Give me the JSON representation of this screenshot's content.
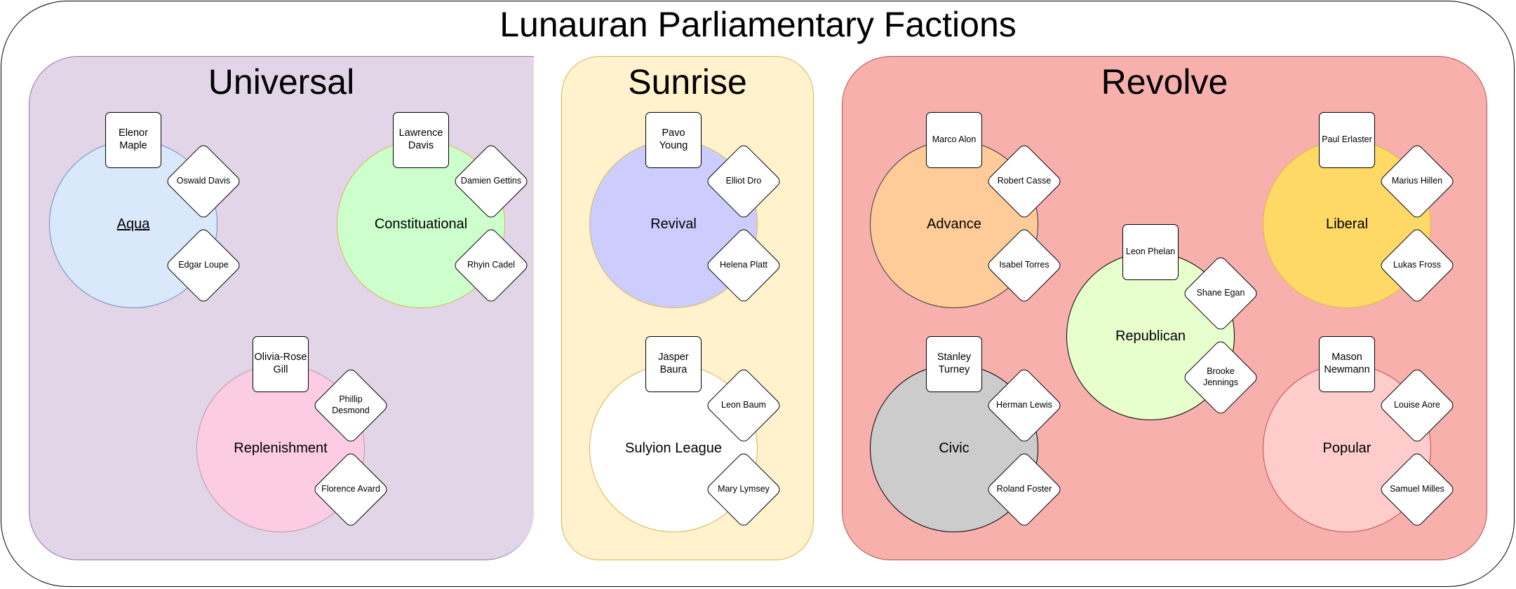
{
  "title": "Lunauran Parliamentary Factions",
  "colors": {
    "universal_fill": "#e1d5e7",
    "universal_stroke": "#9673a6",
    "sunrise_fill": "#fff2cc",
    "sunrise_stroke": "#d6b656",
    "revolve_fill": "#f8b0ad",
    "revolve_stroke": "#b85450"
  },
  "groups": [
    {
      "name": "Universal",
      "parties": [
        {
          "name": "Aqua",
          "leader": "Elenor\nMaple",
          "members": [
            "Oswald Davis",
            "Edgar Loupe"
          ]
        },
        {
          "name": "Constituational",
          "leader": "Lawrence\nDavis",
          "members": [
            "Damien Gettins",
            "Rhyin Cadel"
          ]
        },
        {
          "name": "Replenishment",
          "leader": "Olivia-Rose\nGill",
          "members": [
            "Phillip\nDesmond",
            "Florence Avard"
          ]
        }
      ]
    },
    {
      "name": "Sunrise",
      "parties": [
        {
          "name": "Revival",
          "leader": "Pavo\nYoung",
          "members": [
            "Elliot Dro",
            "Helena Platt"
          ]
        },
        {
          "name": "Sulyion League",
          "leader": "Jasper\nBaura",
          "members": [
            "Leon Baum",
            "Mary Lymsey"
          ]
        }
      ]
    },
    {
      "name": "Revolve",
      "parties": [
        {
          "name": "Advance",
          "leader": "Marco Alon",
          "members": [
            "Robert Casse",
            "Isabel Torres"
          ]
        },
        {
          "name": "Republican",
          "leader": "Leon Phelan",
          "members": [
            "Shane Egan",
            "Brooke\nJennings"
          ]
        },
        {
          "name": "Liberal",
          "leader": "Paul Erlaster",
          "members": [
            "Marius Hillen",
            "Lukas Fross"
          ]
        },
        {
          "name": "Civic",
          "leader": "Stanley\nTurney",
          "members": [
            "Herman Lewis",
            "Roland Foster"
          ]
        },
        {
          "name": "Popular",
          "leader": "Mason\nNewmann",
          "members": [
            "Louise Aore",
            "Samuel Milles"
          ]
        }
      ]
    }
  ]
}
